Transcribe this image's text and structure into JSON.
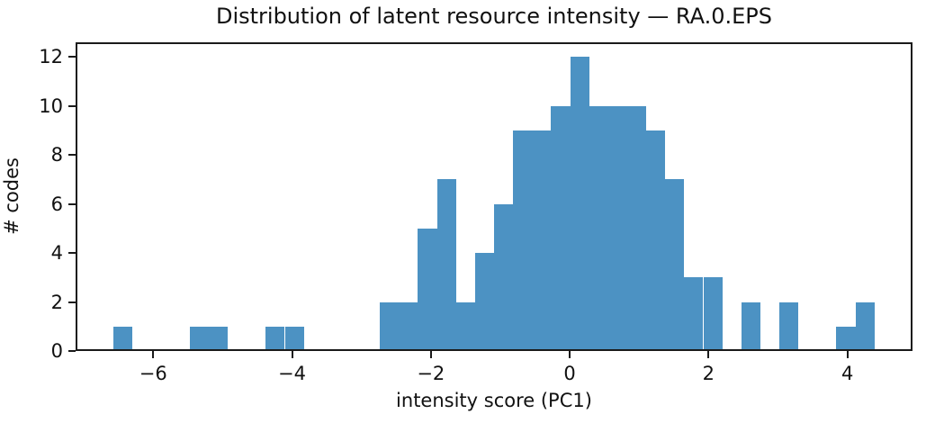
{
  "chart_data": {
    "type": "bar",
    "subtype": "histogram",
    "title": "Distribution of latent resource intensity — RA.0.EPS",
    "xlabel": "intensity score (PC1)",
    "ylabel": "# codes",
    "bar_color": "#4c92c3",
    "axis_color": "#1a1a1a",
    "grid": false,
    "legend": null,
    "bin_start": -6.57,
    "bin_width": 0.274,
    "counts": [
      1,
      0,
      0,
      0,
      1,
      1,
      0,
      0,
      1,
      1,
      0,
      0,
      0,
      0,
      2,
      2,
      5,
      7,
      2,
      4,
      6,
      9,
      9,
      10,
      12,
      10,
      10,
      10,
      9,
      7,
      3,
      3,
      0,
      2,
      0,
      2,
      0,
      0,
      1,
      2
    ],
    "total_count": 132,
    "xlim": [
      -7.118,
      4.938
    ],
    "ylim": [
      0,
      12.6
    ],
    "xticks": [
      {
        "v": -6,
        "label": "−6"
      },
      {
        "v": -4,
        "label": "−4"
      },
      {
        "v": -2,
        "label": "−2"
      },
      {
        "v": 0,
        "label": "0"
      },
      {
        "v": 2,
        "label": "2"
      },
      {
        "v": 4,
        "label": "4"
      }
    ],
    "yticks": [
      {
        "v": 0,
        "label": "0"
      },
      {
        "v": 2,
        "label": "2"
      },
      {
        "v": 4,
        "label": "4"
      },
      {
        "v": 6,
        "label": "6"
      },
      {
        "v": 8,
        "label": "8"
      },
      {
        "v": 10,
        "label": "10"
      },
      {
        "v": 12,
        "label": "12"
      }
    ]
  }
}
